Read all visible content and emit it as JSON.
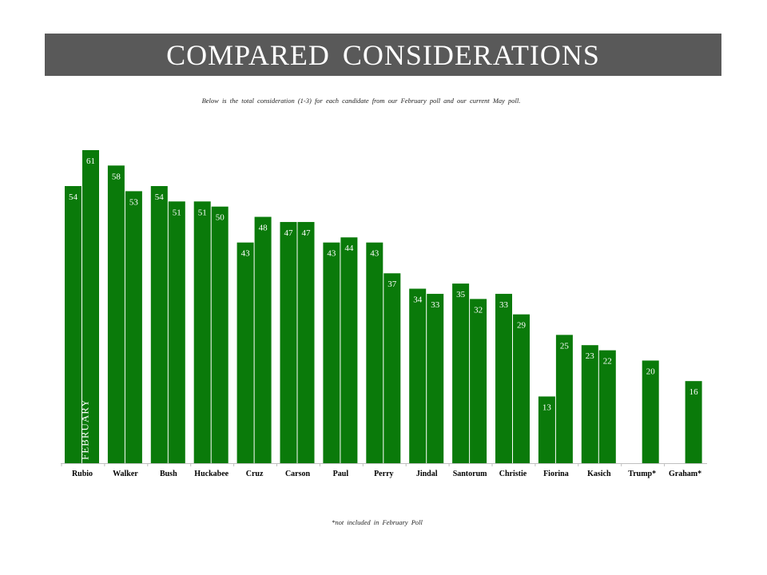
{
  "header": {
    "title": "COMPARED CONSIDERATIONS",
    "subtitle": "Below is the total consideration (1-3) for each candidate from our February poll and our current May poll.",
    "footnote": "*not included in February Poll",
    "series_note": "FEBRUARY"
  },
  "colors": {
    "bar": "#0a7a0a",
    "title_bg": "#595959",
    "axis": "#bfbfbf"
  },
  "chart_data": {
    "type": "bar",
    "categories": [
      "Rubio",
      "Walker",
      "Bush",
      "Huckabee",
      "Cruz",
      "Carson",
      "Paul",
      "Perry",
      "Jindal",
      "Santorum",
      "Christie",
      "Fiorina",
      "Kasich",
      "Trump*",
      "Graham*"
    ],
    "series": [
      {
        "name": "FEBRUARY",
        "values": [
          54,
          58,
          54,
          51,
          43,
          47,
          43,
          43,
          34,
          35,
          33,
          13,
          23,
          null,
          null
        ]
      },
      {
        "values": [
          61,
          53,
          51,
          50,
          48,
          47,
          44,
          37,
          33,
          32,
          29,
          25,
          22,
          20,
          16
        ]
      }
    ],
    "ylim": [
      0,
      61
    ],
    "grid": false
  }
}
